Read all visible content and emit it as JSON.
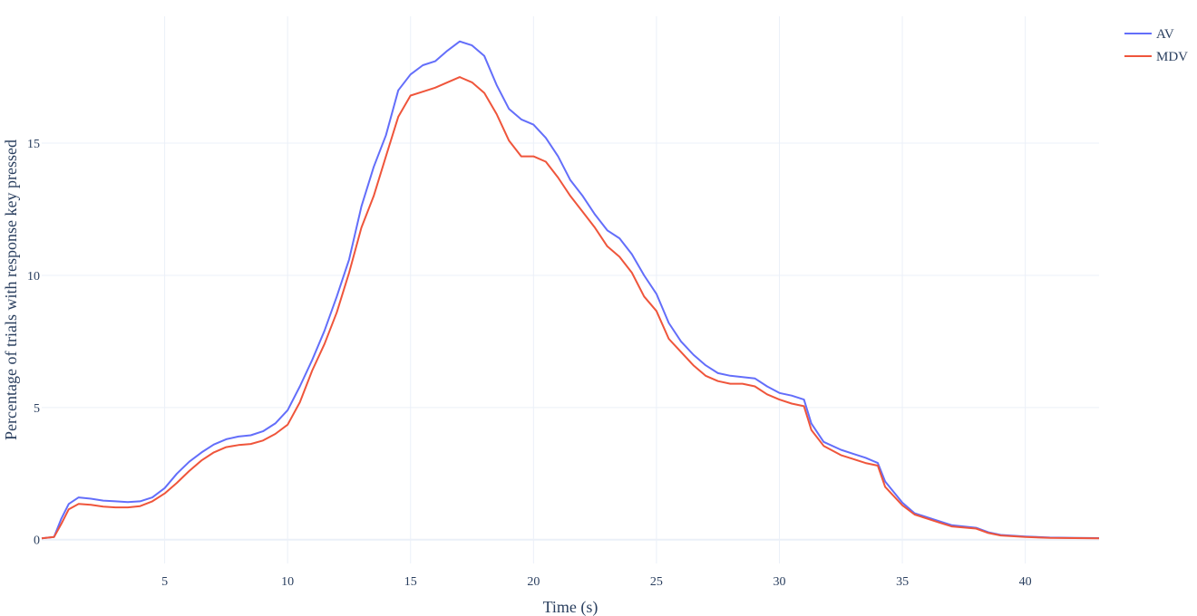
{
  "chart_data": {
    "type": "line",
    "title": "",
    "xlabel": "Time (s)",
    "ylabel": "Percentage of trials with response key pressed",
    "xlim": [
      0,
      43
    ],
    "ylim": [
      -0.9,
      19.8
    ],
    "xticks": [
      5,
      10,
      15,
      20,
      25,
      30,
      35,
      40
    ],
    "yticks": [
      0,
      5,
      10,
      15
    ],
    "grid": true,
    "legend": "top-right",
    "series": [
      {
        "name": "AV",
        "color": "#636efa",
        "points": [
          [
            0,
            0.05
          ],
          [
            0.5,
            0.1
          ],
          [
            0.8,
            0.8
          ],
          [
            1.1,
            1.35
          ],
          [
            1.5,
            1.6
          ],
          [
            2,
            1.55
          ],
          [
            2.5,
            1.48
          ],
          [
            3,
            1.45
          ],
          [
            3.5,
            1.42
          ],
          [
            4,
            1.45
          ],
          [
            4.5,
            1.6
          ],
          [
            5,
            1.95
          ],
          [
            5.5,
            2.5
          ],
          [
            6,
            2.95
          ],
          [
            6.5,
            3.3
          ],
          [
            7,
            3.6
          ],
          [
            7.5,
            3.8
          ],
          [
            8,
            3.9
          ],
          [
            8.5,
            3.95
          ],
          [
            9,
            4.1
          ],
          [
            9.5,
            4.4
          ],
          [
            10,
            4.9
          ],
          [
            10.5,
            5.8
          ],
          [
            11,
            6.8
          ],
          [
            11.5,
            7.9
          ],
          [
            12,
            9.2
          ],
          [
            12.5,
            10.6
          ],
          [
            13,
            12.6
          ],
          [
            13.5,
            14.1
          ],
          [
            14,
            15.3
          ],
          [
            14.5,
            17.0
          ],
          [
            15,
            17.6
          ],
          [
            15.5,
            17.95
          ],
          [
            16,
            18.1
          ],
          [
            16.5,
            18.5
          ],
          [
            17,
            18.85
          ],
          [
            17.5,
            18.7
          ],
          [
            18,
            18.3
          ],
          [
            18.5,
            17.2
          ],
          [
            19,
            16.3
          ],
          [
            19.5,
            15.9
          ],
          [
            20,
            15.7
          ],
          [
            20.5,
            15.2
          ],
          [
            21,
            14.5
          ],
          [
            21.5,
            13.6
          ],
          [
            22,
            13.0
          ],
          [
            22.5,
            12.3
          ],
          [
            23,
            11.7
          ],
          [
            23.5,
            11.4
          ],
          [
            24,
            10.8
          ],
          [
            24.5,
            10.0
          ],
          [
            25,
            9.3
          ],
          [
            25.5,
            8.2
          ],
          [
            26,
            7.5
          ],
          [
            26.5,
            7.0
          ],
          [
            27,
            6.6
          ],
          [
            27.5,
            6.3
          ],
          [
            28,
            6.2
          ],
          [
            28.5,
            6.15
          ],
          [
            29,
            6.1
          ],
          [
            29.5,
            5.8
          ],
          [
            30,
            5.55
          ],
          [
            30.5,
            5.45
          ],
          [
            31,
            5.3
          ],
          [
            31.3,
            4.4
          ],
          [
            31.8,
            3.7
          ],
          [
            32.5,
            3.4
          ],
          [
            33,
            3.25
          ],
          [
            33.5,
            3.1
          ],
          [
            34,
            2.9
          ],
          [
            34.3,
            2.2
          ],
          [
            35,
            1.4
          ],
          [
            35.5,
            1.0
          ],
          [
            36,
            0.85
          ],
          [
            36.5,
            0.7
          ],
          [
            37,
            0.55
          ],
          [
            38,
            0.45
          ],
          [
            38.5,
            0.28
          ],
          [
            39,
            0.18
          ],
          [
            40,
            0.12
          ],
          [
            41,
            0.08
          ],
          [
            42,
            0.07
          ],
          [
            43,
            0.06
          ]
        ]
      },
      {
        "name": "MDV",
        "color": "#ef553b",
        "points": [
          [
            0,
            0.05
          ],
          [
            0.5,
            0.1
          ],
          [
            0.8,
            0.6
          ],
          [
            1.1,
            1.15
          ],
          [
            1.5,
            1.35
          ],
          [
            2,
            1.32
          ],
          [
            2.5,
            1.25
          ],
          [
            3,
            1.22
          ],
          [
            3.5,
            1.22
          ],
          [
            4,
            1.27
          ],
          [
            4.5,
            1.45
          ],
          [
            5,
            1.75
          ],
          [
            5.5,
            2.15
          ],
          [
            6,
            2.6
          ],
          [
            6.5,
            3.0
          ],
          [
            7,
            3.3
          ],
          [
            7.5,
            3.5
          ],
          [
            8,
            3.58
          ],
          [
            8.5,
            3.62
          ],
          [
            9,
            3.75
          ],
          [
            9.5,
            4.0
          ],
          [
            10,
            4.35
          ],
          [
            10.5,
            5.2
          ],
          [
            11,
            6.4
          ],
          [
            11.5,
            7.4
          ],
          [
            12,
            8.6
          ],
          [
            12.5,
            10.1
          ],
          [
            13,
            11.8
          ],
          [
            13.5,
            13.0
          ],
          [
            14,
            14.5
          ],
          [
            14.5,
            16.0
          ],
          [
            15,
            16.8
          ],
          [
            15.5,
            16.95
          ],
          [
            16,
            17.1
          ],
          [
            16.5,
            17.3
          ],
          [
            17,
            17.5
          ],
          [
            17.5,
            17.3
          ],
          [
            18,
            16.9
          ],
          [
            18.5,
            16.1
          ],
          [
            19,
            15.1
          ],
          [
            19.5,
            14.5
          ],
          [
            20,
            14.5
          ],
          [
            20.5,
            14.3
          ],
          [
            21,
            13.7
          ],
          [
            21.5,
            13.0
          ],
          [
            22,
            12.4
          ],
          [
            22.5,
            11.8
          ],
          [
            23,
            11.1
          ],
          [
            23.5,
            10.7
          ],
          [
            24,
            10.1
          ],
          [
            24.5,
            9.2
          ],
          [
            25,
            8.65
          ],
          [
            25.5,
            7.6
          ],
          [
            26,
            7.1
          ],
          [
            26.5,
            6.6
          ],
          [
            27,
            6.2
          ],
          [
            27.5,
            6.0
          ],
          [
            28,
            5.9
          ],
          [
            28.5,
            5.9
          ],
          [
            29,
            5.8
          ],
          [
            29.5,
            5.5
          ],
          [
            30,
            5.3
          ],
          [
            30.5,
            5.15
          ],
          [
            31,
            5.05
          ],
          [
            31.3,
            4.15
          ],
          [
            31.8,
            3.55
          ],
          [
            32.5,
            3.2
          ],
          [
            33,
            3.05
          ],
          [
            33.5,
            2.9
          ],
          [
            34,
            2.8
          ],
          [
            34.3,
            2.0
          ],
          [
            35,
            1.3
          ],
          [
            35.5,
            0.95
          ],
          [
            36,
            0.8
          ],
          [
            36.5,
            0.65
          ],
          [
            37,
            0.5
          ],
          [
            38,
            0.42
          ],
          [
            38.5,
            0.25
          ],
          [
            39,
            0.16
          ],
          [
            40,
            0.1
          ],
          [
            41,
            0.07
          ],
          [
            42,
            0.06
          ],
          [
            43,
            0.05
          ]
        ]
      }
    ]
  }
}
